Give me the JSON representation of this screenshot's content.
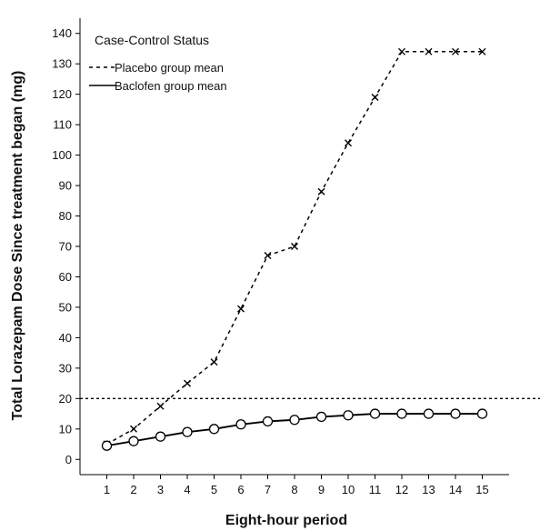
{
  "chart_data": {
    "type": "line",
    "title": "",
    "xlabel": "Eight-hour period",
    "ylabel": "Total Lorazepam Dose Since treatment began (mg)",
    "x": [
      1,
      2,
      3,
      4,
      5,
      6,
      7,
      8,
      9,
      10,
      11,
      12,
      13,
      14,
      15
    ],
    "xlim": [
      0,
      16
    ],
    "ylim": [
      -5,
      145
    ],
    "yticks": [
      0,
      10,
      20,
      30,
      40,
      50,
      60,
      70,
      80,
      90,
      100,
      110,
      120,
      130,
      140
    ],
    "grid": false,
    "legend": {
      "title": "Case-Control Status",
      "placement": "top-left"
    },
    "series": [
      {
        "name": "Placebo group mean",
        "line_style": "dashed",
        "marker": "x",
        "values": [
          5,
          10,
          17.5,
          25,
          32,
          49.5,
          67,
          70,
          88,
          104,
          119,
          134,
          134,
          134,
          134
        ]
      },
      {
        "name": "Baclofen group mean",
        "line_style": "solid",
        "marker": "circle",
        "values": [
          4.5,
          6,
          7.5,
          9,
          10,
          11.5,
          12.5,
          13,
          14,
          14.5,
          15,
          15,
          15,
          15,
          15
        ]
      }
    ],
    "reference_line": {
      "y": 20,
      "style": "dotted"
    }
  }
}
